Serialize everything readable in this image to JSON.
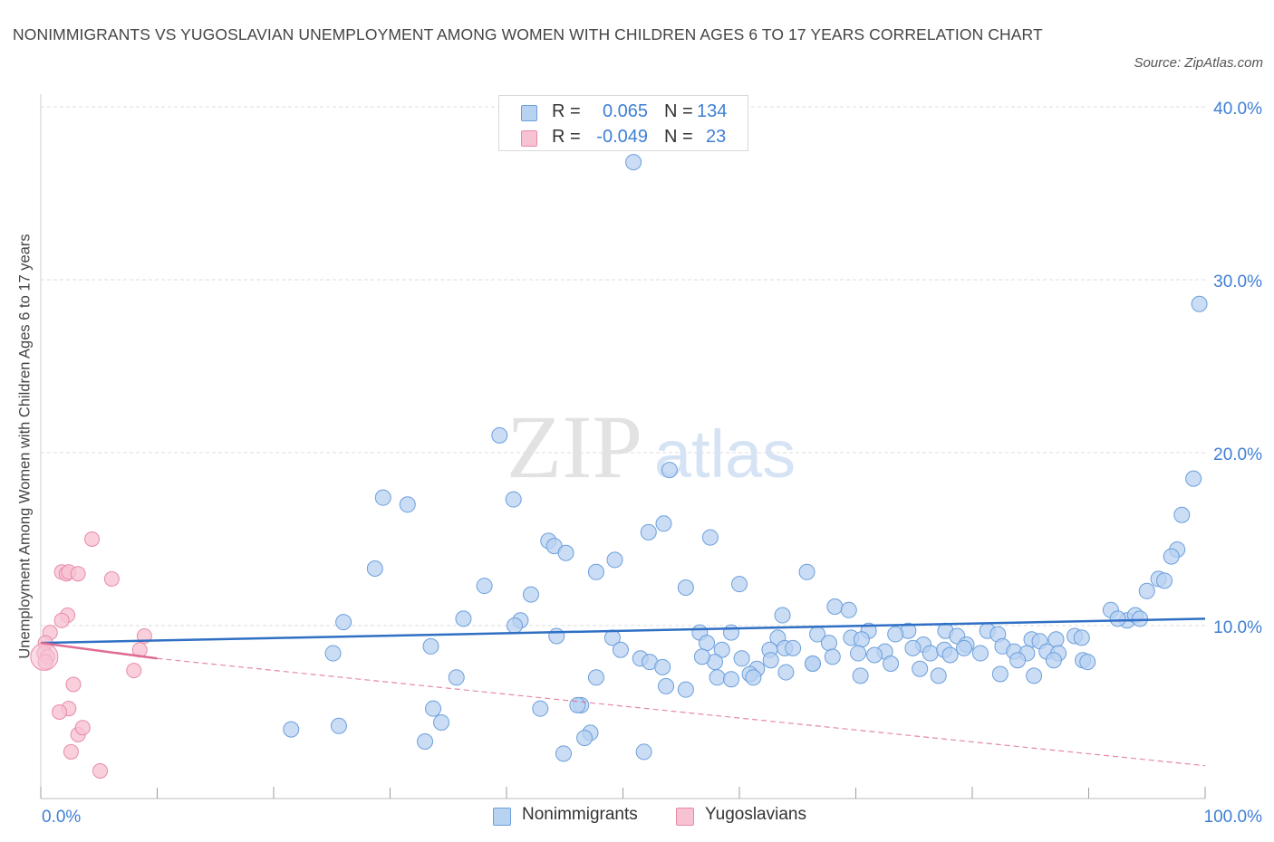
{
  "title": "NONIMMIGRANTS VS YUGOSLAVIAN UNEMPLOYMENT AMONG WOMEN WITH CHILDREN AGES 6 TO 17 YEARS CORRELATION CHART",
  "source": "Source: ZipAtlas.com",
  "watermark": {
    "zip": "ZIP",
    "atlas": "atlas"
  },
  "colors": {
    "blue_fill": "#b8d2f2",
    "blue_stroke": "#6c9fdc",
    "blue_line": "#2f6fc4",
    "pink_fill": "#f7c3d3",
    "pink_stroke": "#e88aa8",
    "pink_line": "#e06b93",
    "grid": "#dedede",
    "axis_text": "#3f7fd4"
  },
  "legend_top": [
    {
      "r_label": "R =",
      "r_value": "0.065",
      "n_label": "N =",
      "n_value": "134"
    },
    {
      "r_label": "R =",
      "r_value": "-0.049",
      "n_label": "N =",
      "n_value": "23"
    }
  ],
  "legend_bottom": [
    "Nonimmigrants",
    "Yugoslavians"
  ],
  "chart_data": {
    "type": "scatter",
    "title": "NONIMMIGRANTS VS YUGOSLAVIAN UNEMPLOYMENT AMONG WOMEN WITH CHILDREN AGES 6 TO 17 YEARS CORRELATION CHART",
    "xlabel": "",
    "ylabel": "Unemployment Among Women with Children Ages 6 to 17 years",
    "xlim": [
      0,
      100
    ],
    "ylim": [
      0,
      40
    ],
    "x_tick_labels": [
      "0.0%",
      "100.0%"
    ],
    "y_ticks": [
      10,
      20,
      30,
      40
    ],
    "y_tick_labels": [
      "10.0%",
      "20.0%",
      "30.0%",
      "40.0%"
    ],
    "grid": true,
    "legend_position": "top-center",
    "series": [
      {
        "name": "Nonimmigrants",
        "R": 0.065,
        "N": 134,
        "trend": {
          "x": [
            0,
            100
          ],
          "y": [
            9.0,
            10.4
          ]
        },
        "points": [
          [
            50.9,
            36.8
          ],
          [
            99.5,
            28.6
          ],
          [
            39.4,
            21.0
          ],
          [
            54.0,
            19.0
          ],
          [
            99.0,
            18.5
          ],
          [
            29.4,
            17.4
          ],
          [
            31.5,
            17.0
          ],
          [
            40.6,
            17.3
          ],
          [
            98.0,
            16.4
          ],
          [
            53.5,
            15.9
          ],
          [
            52.2,
            15.4
          ],
          [
            57.5,
            15.1
          ],
          [
            43.6,
            14.9
          ],
          [
            44.1,
            14.6
          ],
          [
            45.1,
            14.2
          ],
          [
            97.6,
            14.4
          ],
          [
            97.1,
            14.0
          ],
          [
            49.3,
            13.8
          ],
          [
            28.7,
            13.3
          ],
          [
            47.7,
            13.1
          ],
          [
            65.8,
            13.1
          ],
          [
            96.0,
            12.7
          ],
          [
            96.5,
            12.6
          ],
          [
            38.1,
            12.3
          ],
          [
            55.4,
            12.2
          ],
          [
            60.0,
            12.4
          ],
          [
            42.1,
            11.8
          ],
          [
            95.0,
            12.0
          ],
          [
            68.2,
            11.1
          ],
          [
            69.4,
            10.9
          ],
          [
            63.7,
            10.6
          ],
          [
            91.9,
            10.9
          ],
          [
            93.3,
            10.3
          ],
          [
            94.0,
            10.6
          ],
          [
            92.5,
            10.4
          ],
          [
            94.4,
            10.4
          ],
          [
            26.0,
            10.2
          ],
          [
            36.3,
            10.4
          ],
          [
            41.2,
            10.3
          ],
          [
            40.7,
            10.0
          ],
          [
            56.6,
            9.6
          ],
          [
            59.3,
            9.6
          ],
          [
            71.1,
            9.7
          ],
          [
            74.5,
            9.7
          ],
          [
            81.3,
            9.7
          ],
          [
            77.7,
            9.7
          ],
          [
            66.7,
            9.5
          ],
          [
            73.4,
            9.5
          ],
          [
            82.2,
            9.5
          ],
          [
            63.3,
            9.3
          ],
          [
            69.6,
            9.3
          ],
          [
            70.5,
            9.2
          ],
          [
            78.7,
            9.4
          ],
          [
            85.1,
            9.2
          ],
          [
            87.2,
            9.2
          ],
          [
            88.8,
            9.4
          ],
          [
            89.4,
            9.3
          ],
          [
            44.3,
            9.4
          ],
          [
            49.1,
            9.3
          ],
          [
            57.2,
            9.0
          ],
          [
            67.7,
            9.0
          ],
          [
            75.8,
            8.9
          ],
          [
            79.5,
            8.9
          ],
          [
            85.8,
            9.1
          ],
          [
            33.5,
            8.8
          ],
          [
            25.1,
            8.4
          ],
          [
            49.8,
            8.6
          ],
          [
            58.5,
            8.6
          ],
          [
            62.6,
            8.6
          ],
          [
            63.9,
            8.7
          ],
          [
            64.6,
            8.7
          ],
          [
            70.2,
            8.4
          ],
          [
            72.5,
            8.5
          ],
          [
            74.9,
            8.7
          ],
          [
            76.4,
            8.4
          ],
          [
            77.6,
            8.6
          ],
          [
            79.3,
            8.7
          ],
          [
            80.7,
            8.4
          ],
          [
            82.6,
            8.8
          ],
          [
            83.6,
            8.5
          ],
          [
            84.7,
            8.4
          ],
          [
            86.4,
            8.5
          ],
          [
            87.4,
            8.4
          ],
          [
            60.2,
            8.1
          ],
          [
            62.7,
            8.0
          ],
          [
            68.0,
            8.2
          ],
          [
            71.6,
            8.3
          ],
          [
            78.1,
            8.3
          ],
          [
            83.9,
            8.0
          ],
          [
            89.5,
            8.0
          ],
          [
            87.0,
            8.0
          ],
          [
            57.9,
            7.9
          ],
          [
            51.5,
            8.1
          ],
          [
            52.3,
            7.9
          ],
          [
            56.8,
            8.2
          ],
          [
            66.3,
            7.8
          ],
          [
            73.0,
            7.8
          ],
          [
            75.5,
            7.5
          ],
          [
            53.4,
            7.6
          ],
          [
            61.5,
            7.5
          ],
          [
            66.3,
            7.8
          ],
          [
            64.0,
            7.3
          ],
          [
            70.4,
            7.1
          ],
          [
            77.1,
            7.1
          ],
          [
            82.4,
            7.2
          ],
          [
            85.3,
            7.1
          ],
          [
            89.9,
            7.9
          ],
          [
            60.9,
            7.2
          ],
          [
            61.2,
            7.0
          ],
          [
            58.1,
            7.0
          ],
          [
            47.7,
            7.0
          ],
          [
            35.7,
            7.0
          ],
          [
            59.3,
            6.9
          ],
          [
            53.7,
            6.5
          ],
          [
            55.4,
            6.3
          ],
          [
            46.4,
            5.4
          ],
          [
            46.1,
            5.4
          ],
          [
            42.9,
            5.2
          ],
          [
            33.7,
            5.2
          ],
          [
            34.4,
            4.4
          ],
          [
            25.6,
            4.2
          ],
          [
            21.5,
            4.0
          ],
          [
            47.2,
            3.8
          ],
          [
            46.7,
            3.5
          ],
          [
            33.0,
            3.3
          ],
          [
            44.9,
            2.6
          ],
          [
            51.8,
            2.7
          ]
        ]
      },
      {
        "name": "Yugoslavians",
        "R": -0.049,
        "N": 23,
        "trend": {
          "x": [
            0,
            10
          ],
          "y": [
            9.0,
            8.1
          ]
        },
        "trend_extrapolated": {
          "x": [
            10,
            100
          ],
          "y": [
            8.1,
            1.9
          ]
        },
        "points": [
          [
            4.4,
            15.0
          ],
          [
            1.8,
            13.1
          ],
          [
            2.2,
            13.0
          ],
          [
            2.4,
            13.1
          ],
          [
            3.2,
            13.0
          ],
          [
            6.1,
            12.7
          ],
          [
            2.3,
            10.6
          ],
          [
            1.8,
            10.3
          ],
          [
            8.9,
            9.4
          ],
          [
            0.8,
            9.6
          ],
          [
            0.4,
            9.0
          ],
          [
            0.3,
            8.4
          ],
          [
            8.5,
            8.6
          ],
          [
            0.6,
            8.2
          ],
          [
            0.4,
            7.9
          ],
          [
            8.0,
            7.4
          ],
          [
            2.8,
            6.6
          ],
          [
            2.4,
            5.2
          ],
          [
            1.6,
            5.0
          ],
          [
            3.2,
            3.7
          ],
          [
            3.6,
            4.1
          ],
          [
            2.6,
            2.7
          ],
          [
            5.1,
            1.6
          ]
        ]
      }
    ]
  }
}
